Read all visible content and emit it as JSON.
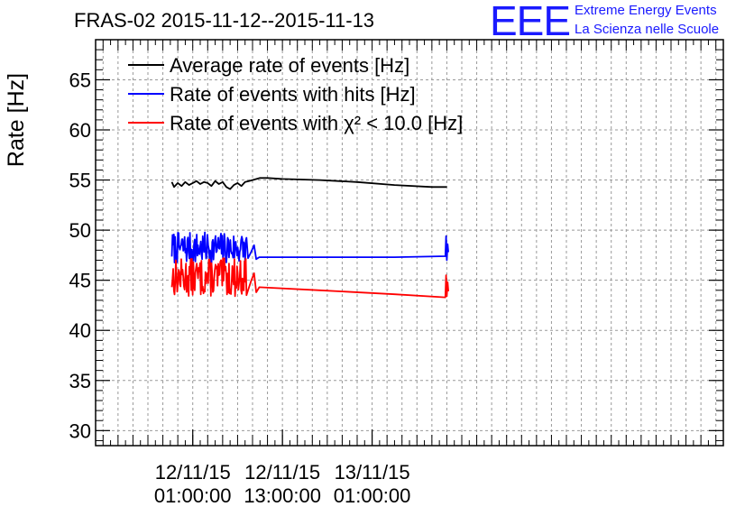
{
  "chart_data": {
    "type": "line",
    "title": "FRAS-02 2015-11-12--2015-11-13",
    "ylabel": "Rate [Hz]",
    "xlabel": "",
    "ylim": [
      28.5,
      69
    ],
    "yticks": [
      30,
      35,
      40,
      45,
      50,
      55,
      60,
      65
    ],
    "xlim": [
      0,
      84
    ],
    "xticks": [
      {
        "x": 13,
        "l1": "12/11/15",
        "l2": "01:00:00"
      },
      {
        "x": 25,
        "l1": "12/11/15",
        "l2": "13:00:00"
      },
      {
        "x": 37,
        "l1": "13/11/15",
        "l2": "01:00:00"
      }
    ],
    "grid": true,
    "legend": [
      {
        "label": "Average rate of events [Hz]",
        "color": "#000000"
      },
      {
        "label": "Rate of events with hits [Hz]",
        "color": "#0000ff"
      },
      {
        "label": "Rate of events with χ² < 10.0 [Hz]",
        "color": "#ff0000"
      }
    ],
    "series": [
      {
        "name": "Average rate of events [Hz]",
        "color": "#000000",
        "points": [
          [
            10.2,
            54.8
          ],
          [
            10.5,
            54.3
          ],
          [
            11,
            54.7
          ],
          [
            11.5,
            54.4
          ],
          [
            12,
            54.8
          ],
          [
            12.5,
            54.5
          ],
          [
            13,
            54.7
          ],
          [
            13.5,
            54.9
          ],
          [
            14,
            54.6
          ],
          [
            14.5,
            54.8
          ],
          [
            15,
            54.7
          ],
          [
            15.5,
            54.4
          ],
          [
            16,
            54.9
          ],
          [
            16.5,
            54.6
          ],
          [
            17,
            54.8
          ],
          [
            17.5,
            54.3
          ],
          [
            18,
            54.1
          ],
          [
            18.5,
            54.5
          ],
          [
            19,
            54.7
          ],
          [
            19.5,
            54.4
          ],
          [
            20,
            54.8
          ],
          [
            20.5,
            54.9
          ],
          [
            21,
            55.0
          ],
          [
            22,
            55.2
          ],
          [
            23,
            55.2
          ],
          [
            25,
            55.1
          ],
          [
            30,
            55.0
          ],
          [
            35,
            54.8
          ],
          [
            40,
            54.5
          ],
          [
            45,
            54.3
          ],
          [
            47,
            54.3
          ]
        ]
      },
      {
        "name": "Rate of events with hits [Hz]",
        "color": "#0000ff",
        "noise": {
          "start": 10.2,
          "end": 20.2,
          "step": 0.09,
          "base": 48.2,
          "amp": 1.6,
          "seed": 7
        },
        "points": [
          [
            20.4,
            47.2
          ],
          [
            20.8,
            47.8
          ],
          [
            21.2,
            48.5
          ],
          [
            21.5,
            47.1
          ],
          [
            21.9,
            47.3
          ],
          [
            30,
            47.3
          ],
          [
            40,
            47.3
          ],
          [
            46.8,
            47.4
          ],
          [
            46.9,
            49.4
          ],
          [
            47.0,
            47.0
          ],
          [
            47.1,
            48.6
          ],
          [
            47.2,
            47.8
          ]
        ]
      },
      {
        "name": "Rate of events with χ² < 10.0 [Hz]",
        "color": "#ff0000",
        "noise": {
          "start": 10.2,
          "end": 20.2,
          "step": 0.09,
          "base": 45.3,
          "amp": 1.9,
          "seed": 13
        },
        "points": [
          [
            20.4,
            44.0
          ],
          [
            20.8,
            44.9
          ],
          [
            21.2,
            45.7
          ],
          [
            21.5,
            43.8
          ],
          [
            21.9,
            44.3
          ],
          [
            30,
            44.0
          ],
          [
            40,
            43.6
          ],
          [
            46.8,
            43.3
          ],
          [
            46.9,
            45.5
          ],
          [
            47.0,
            43.4
          ],
          [
            47.1,
            44.8
          ],
          [
            47.2,
            43.9
          ]
        ]
      }
    ]
  },
  "header": {
    "logo_text": "EEE",
    "logo_line1": "Extreme Energy Events",
    "logo_line2": "La Scienza nelle Scuole"
  }
}
